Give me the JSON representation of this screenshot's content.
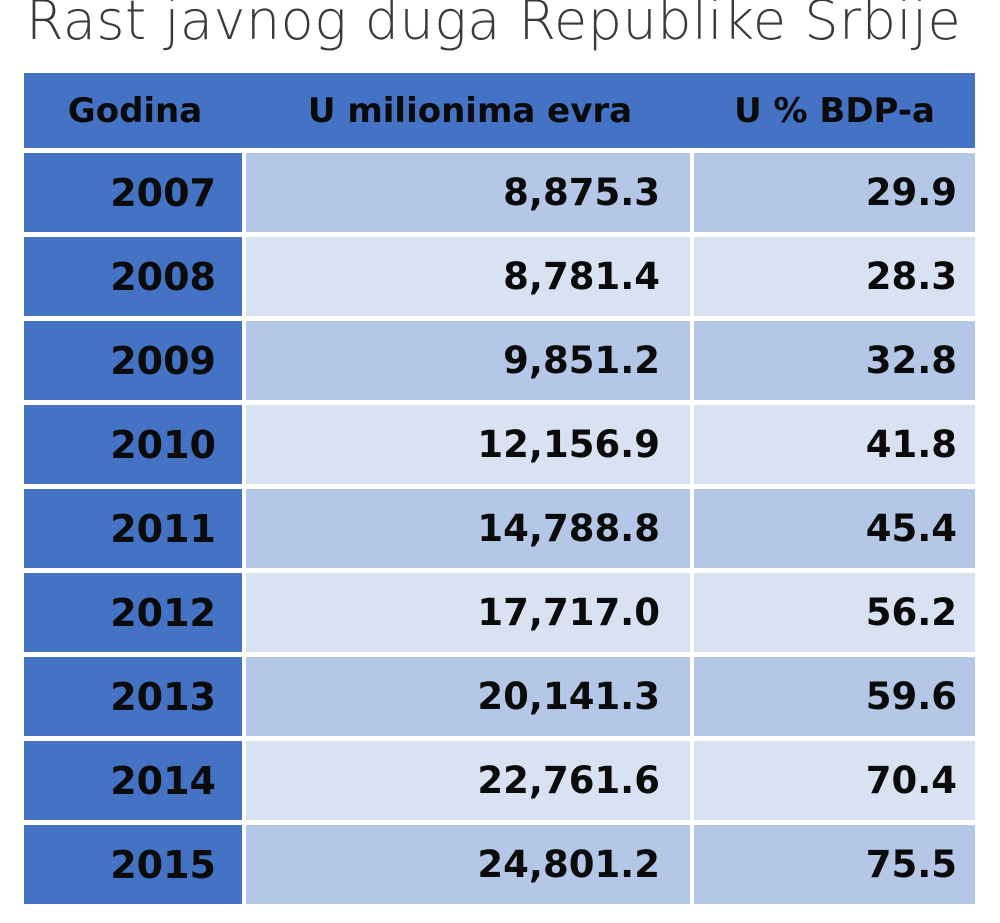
{
  "title": "Rast javnog duga Republike Srbije",
  "table": {
    "columns": [
      "Godina",
      "U milionima evra",
      "U % BDP-a"
    ],
    "rows": [
      {
        "godina": "2007",
        "evra": "8,875.3",
        "bdp": "29.9"
      },
      {
        "godina": "2008",
        "evra": "8,781.4",
        "bdp": "28.3"
      },
      {
        "godina": "2009",
        "evra": "9,851.2",
        "bdp": "32.8"
      },
      {
        "godina": "2010",
        "evra": "12,156.9",
        "bdp": "41.8"
      },
      {
        "godina": "2011",
        "evra": "14,788.8",
        "bdp": "45.4"
      },
      {
        "godina": "2012",
        "evra": "17,717.0",
        "bdp": "56.2"
      },
      {
        "godina": "2013",
        "evra": "20,141.3",
        "bdp": "59.6"
      },
      {
        "godina": "2014",
        "evra": "22,761.6",
        "bdp": "70.4"
      },
      {
        "godina": "2015",
        "evra": "24,801.2",
        "bdp": "75.5"
      }
    ]
  },
  "colors": {
    "header_blue": "#4472C4",
    "row_band_dark": "#B4C7E7",
    "row_band_light": "#D9E2F2",
    "title_text": "#3A3A3A",
    "cell_text": "#0B0B0B"
  },
  "chart_data": {
    "type": "table",
    "title": "Rast javnog duga Republike Srbije",
    "columns": [
      "Godina",
      "U milionima evra",
      "U % BDP-a"
    ],
    "categories": [
      "2007",
      "2008",
      "2009",
      "2010",
      "2011",
      "2012",
      "2013",
      "2014",
      "2015"
    ],
    "series": [
      {
        "name": "U milionima evra",
        "values": [
          8875.3,
          8781.4,
          9851.2,
          12156.9,
          14788.8,
          17717.0,
          20141.3,
          22761.6,
          24801.2
        ]
      },
      {
        "name": "U % BDP-a",
        "values": [
          29.9,
          28.3,
          32.8,
          41.8,
          45.4,
          56.2,
          59.6,
          70.4,
          75.5
        ]
      }
    ]
  }
}
